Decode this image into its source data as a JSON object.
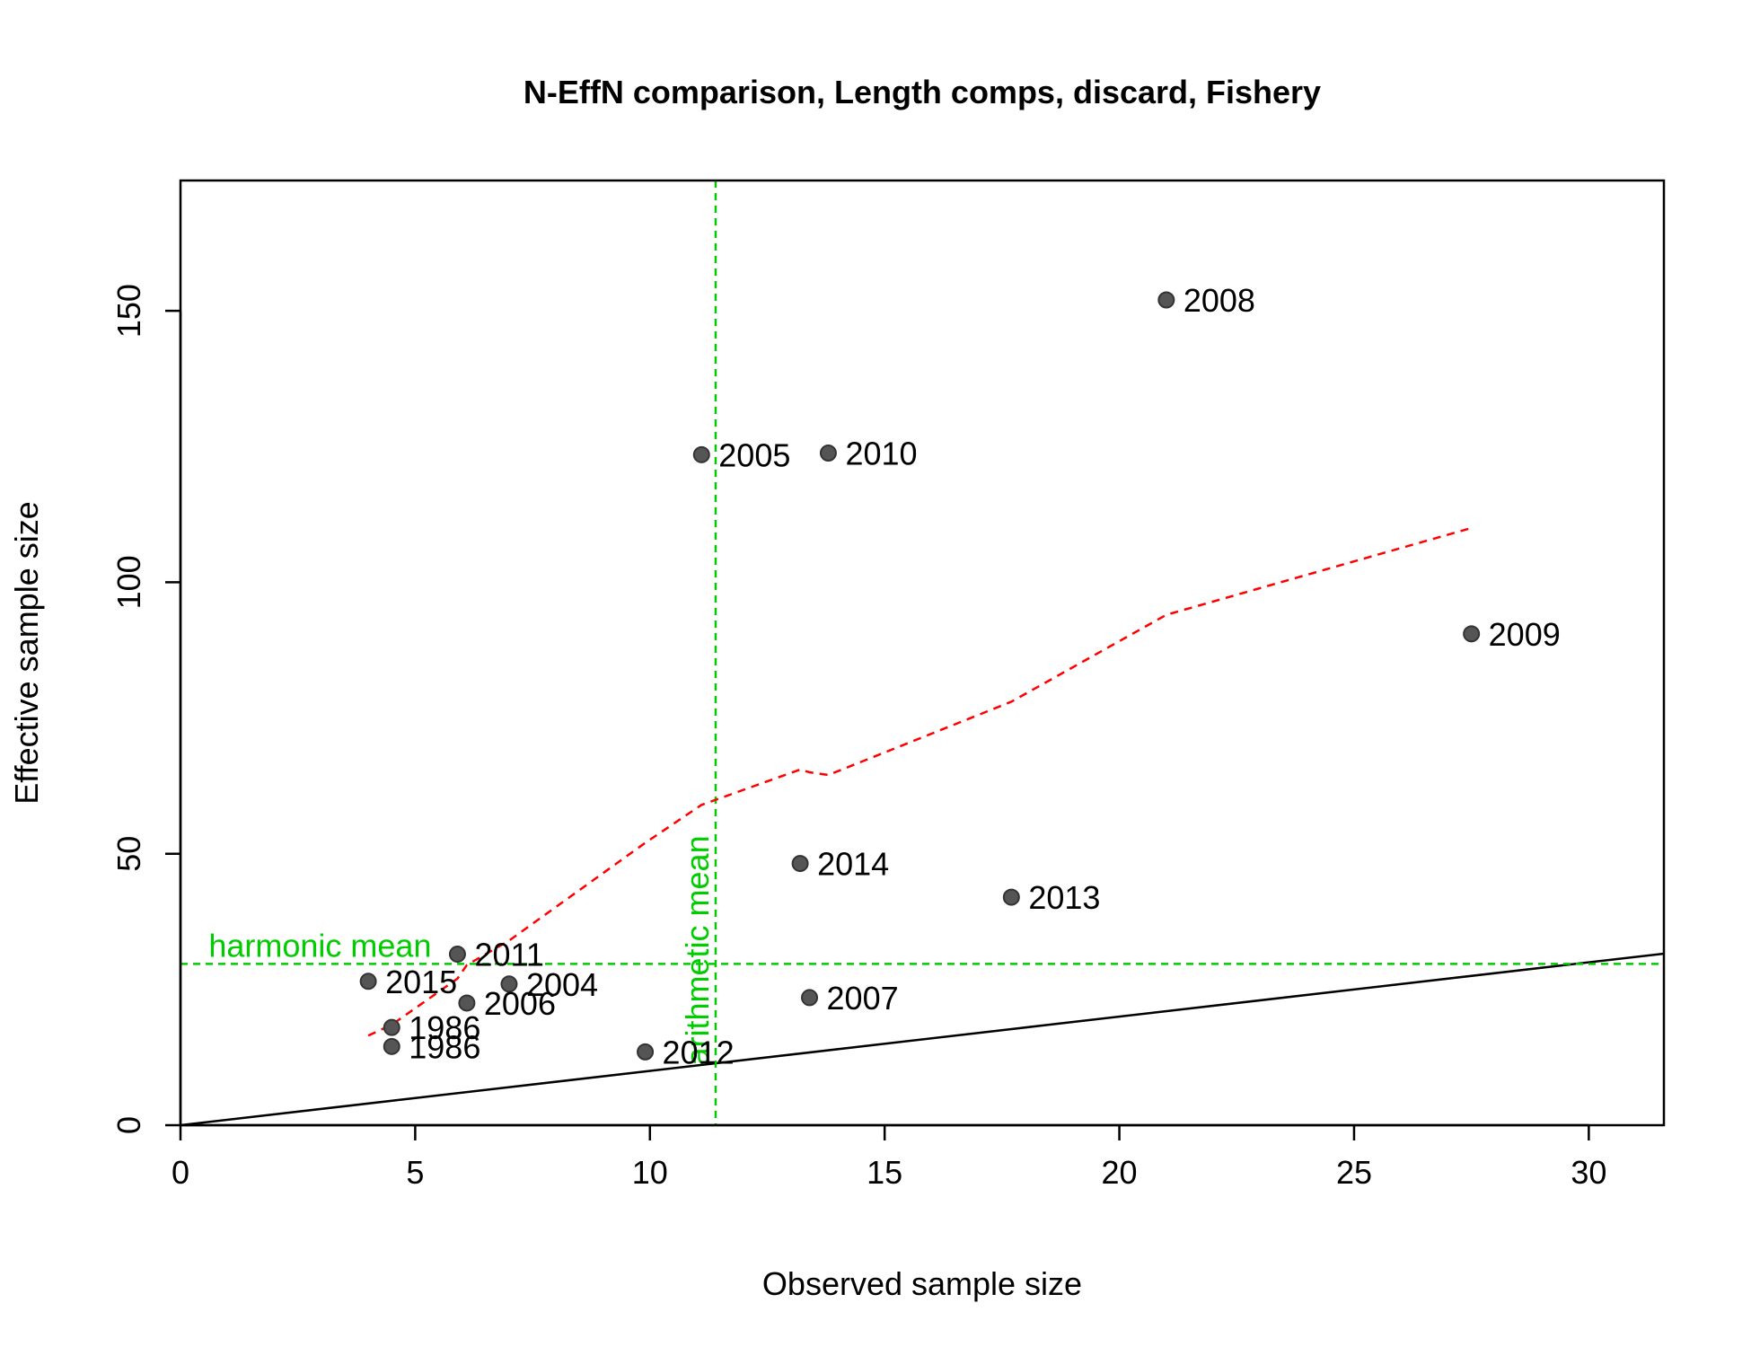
{
  "chart_data": {
    "type": "scatter",
    "title": "N-EffN comparison, Length comps, discard, Fishery",
    "xlabel": "Observed sample size",
    "ylabel": "Effective sample size",
    "xlim": [
      0,
      31.6
    ],
    "ylim": [
      0,
      174
    ],
    "xticks": [
      0,
      5,
      10,
      15,
      20,
      25,
      30
    ],
    "yticks": [
      0,
      50,
      100,
      150
    ],
    "grid": false,
    "points": [
      {
        "label": "2008",
        "x": 21.0,
        "y": 152
      },
      {
        "label": "2005",
        "x": 11.1,
        "y": 123.5
      },
      {
        "label": "2010",
        "x": 13.8,
        "y": 123.8
      },
      {
        "label": "2009",
        "x": 27.5,
        "y": 90.5
      },
      {
        "label": "2014",
        "x": 13.2,
        "y": 48.2
      },
      {
        "label": "2013",
        "x": 17.7,
        "y": 42.0
      },
      {
        "label": "2011",
        "x": 5.9,
        "y": 31.5
      },
      {
        "label": "2015",
        "x": 4.0,
        "y": 26.5
      },
      {
        "label": "2004",
        "x": 7.0,
        "y": 26.0
      },
      {
        "label": "2006",
        "x": 6.1,
        "y": 22.5
      },
      {
        "label": "2007",
        "x": 13.4,
        "y": 23.5
      },
      {
        "label": "1986",
        "x": 4.5,
        "y": 18.0
      },
      {
        "label": "1986",
        "x": 4.5,
        "y": 14.5
      },
      {
        "label": "2012",
        "x": 9.9,
        "y": 13.5
      }
    ],
    "loess_line": {
      "x": [
        4.0,
        4.5,
        5.9,
        6.1,
        7.0,
        9.9,
        11.1,
        13.2,
        13.4,
        13.8,
        17.7,
        21.0,
        27.5
      ],
      "y": [
        16.5,
        18.5,
        27.0,
        29.5,
        34.0,
        52.0,
        59.0,
        65.5,
        65.0,
        64.5,
        78.0,
        94.0,
        110.0
      ],
      "color": "#ff0000",
      "style": "dashed"
    },
    "identity_line": {
      "color": "#000000"
    },
    "harmonic_mean": {
      "label": "harmonic mean",
      "value": 29.7,
      "color": "#00cc00"
    },
    "arithmetic_mean": {
      "label": "arithmetic mean",
      "value": 11.4,
      "color": "#00cc00"
    },
    "point_color": "#555555"
  }
}
